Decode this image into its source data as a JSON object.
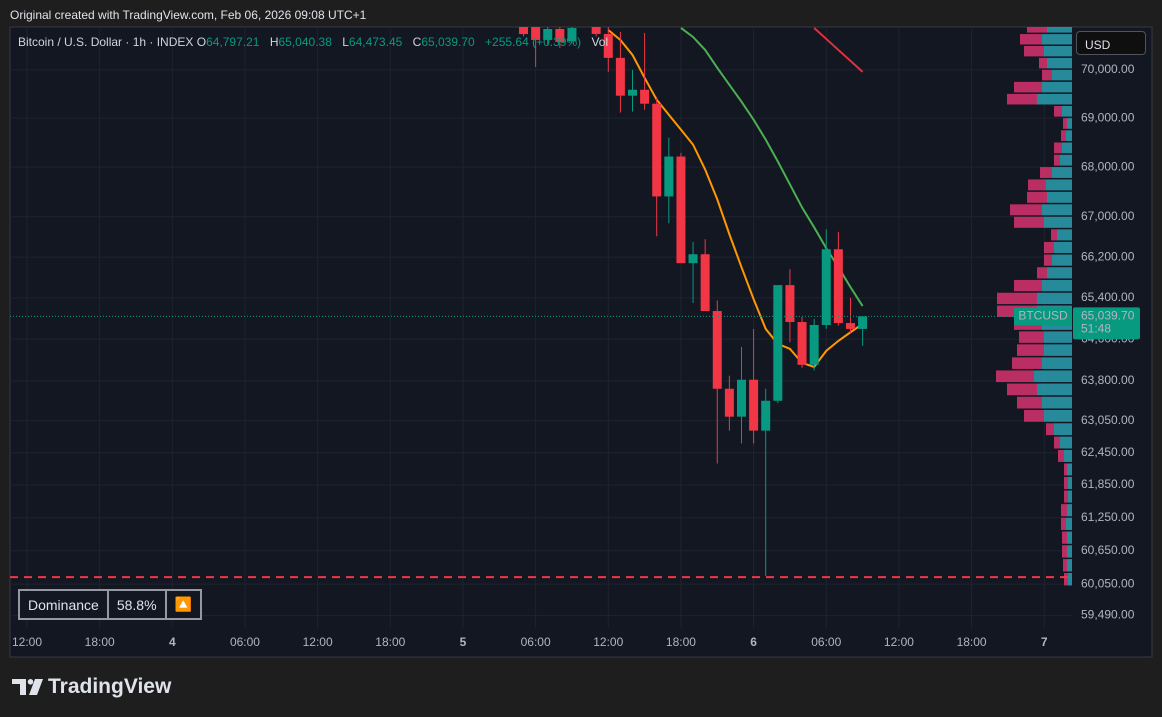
{
  "header": {
    "caption": "Original created with TradingView.com, Feb 06, 2026 09:08 UTC+1"
  },
  "chart_data": {
    "type": "candlestick",
    "legend": {
      "symbol": "Bitcoin / U.S. Dollar · 1h · INDEX",
      "fields": [
        {
          "key": "O",
          "value": "64,797.21"
        },
        {
          "key": "H",
          "value": "65,040.38"
        },
        {
          "key": "L",
          "value": "64,473.45"
        },
        {
          "key": "C",
          "value": "65,039.70"
        }
      ],
      "change": "+255.64 (+0.39%)",
      "vol": "Vol"
    },
    "currency": "USD",
    "categories": [
      "12:00",
      null,
      null,
      null,
      null,
      null,
      "18:00",
      null,
      null,
      null,
      null,
      null,
      "4",
      null,
      null,
      null,
      null,
      null,
      "06:00",
      null,
      null,
      null,
      null,
      null,
      "12:00",
      null,
      null,
      null,
      null,
      null,
      "18:00",
      null,
      null,
      null,
      null,
      null,
      "5",
      null,
      null,
      null,
      null,
      null,
      "06:00",
      null,
      null,
      null,
      null,
      null,
      "12:00",
      null,
      null,
      null,
      null,
      null,
      "18:00",
      null,
      null,
      null,
      null,
      null,
      "6",
      null,
      null,
      null,
      null,
      null,
      "06:00",
      null,
      null,
      null,
      null,
      null,
      "12:00",
      null,
      null,
      null,
      null,
      null,
      "18:00",
      null,
      null,
      null,
      null,
      null,
      "7",
      null,
      null
    ],
    "open": [
      null,
      null,
      null,
      null,
      null,
      null,
      null,
      null,
      null,
      null,
      null,
      null,
      null,
      null,
      null,
      null,
      null,
      null,
      null,
      null,
      null,
      null,
      null,
      null,
      null,
      null,
      null,
      null,
      null,
      null,
      null,
      null,
      null,
      null,
      null,
      null,
      null,
      null,
      null,
      null,
      null,
      70950,
      71000,
      70627,
      70858,
      70600,
      70950,
      71150,
      70753,
      70251,
      69463,
      69586,
      69297,
      67408,
      68214,
      66080,
      66256,
      65144,
      63652,
      63124,
      63823,
      62862,
      63424,
      65649,
      64931,
      64108,
      64873,
      66355,
      64911,
      64797.21,
      null,
      null,
      null,
      null,
      null,
      null,
      null,
      null,
      null,
      null,
      null,
      null,
      null,
      null,
      null,
      null,
      null
    ],
    "high": [
      null,
      null,
      null,
      null,
      null,
      null,
      null,
      null,
      null,
      null,
      null,
      null,
      null,
      null,
      null,
      null,
      null,
      null,
      null,
      null,
      null,
      null,
      null,
      null,
      null,
      null,
      null,
      null,
      null,
      null,
      null,
      null,
      null,
      null,
      null,
      null,
      null,
      null,
      null,
      null,
      null,
      71100,
      71200,
      71100,
      71000,
      71050,
      71300,
      71250,
      70900,
      70796,
      70000,
      70774,
      69440,
      68600,
      68290,
      66500,
      66553,
      65350,
      63900,
      64450,
      64797,
      63652,
      65649,
      65962,
      65030,
      64990,
      66751,
      66700,
      65400,
      65040.38,
      null,
      null,
      null,
      null,
      null,
      null,
      null,
      null,
      null,
      null,
      null,
      null,
      null,
      null,
      null,
      null,
      null
    ],
    "low": [
      null,
      null,
      null,
      null,
      null,
      null,
      null,
      null,
      null,
      null,
      null,
      null,
      null,
      null,
      null,
      null,
      null,
      null,
      null,
      null,
      null,
      null,
      null,
      null,
      null,
      null,
      null,
      null,
      null,
      null,
      null,
      null,
      null,
      null,
      null,
      null,
      null,
      null,
      null,
      null,
      null,
      70700,
      70062,
      70522,
      70460,
      70550,
      70920,
      70700,
      69958,
      69114,
      69134,
      69174,
      66612,
      66870,
      66080,
      65300,
      65144,
      62249,
      62862,
      62621,
      62621,
      60195,
      63380,
      64540,
      64050,
      64000,
      64800,
      64860,
      64700,
      64473.45,
      null,
      null,
      null,
      null,
      null,
      null,
      null,
      null,
      null,
      null,
      null,
      null,
      null,
      null,
      null,
      null,
      null
    ],
    "close": [
      null,
      null,
      null,
      null,
      null,
      null,
      null,
      null,
      null,
      null,
      null,
      null,
      null,
      null,
      null,
      null,
      null,
      null,
      null,
      null,
      null,
      null,
      null,
      null,
      null,
      null,
      null,
      null,
      null,
      null,
      null,
      null,
      null,
      null,
      null,
      null,
      null,
      null,
      null,
      null,
      null,
      70750,
      70627,
      70858,
      70586,
      70880,
      71150,
      70753,
      70251,
      69463,
      69586,
      69297,
      67408,
      68214,
      66080,
      66256,
      65144,
      63652,
      63124,
      63823,
      62862,
      63424,
      65649,
      64931,
      64108,
      64873,
      66355,
      64911,
      64797.21,
      65039.7,
      null,
      null,
      null,
      null,
      null,
      null,
      null,
      null,
      null,
      null,
      null,
      null,
      null,
      null,
      null,
      null,
      null
    ],
    "colors": {
      "up": "#089981",
      "down": "#f23645"
    },
    "series": [
      {
        "color": "#ff9800",
        "values": [
          null,
          null,
          null,
          null,
          null,
          null,
          null,
          null,
          null,
          null,
          null,
          null,
          null,
          null,
          null,
          null,
          null,
          null,
          null,
          null,
          null,
          null,
          null,
          null,
          null,
          null,
          null,
          null,
          null,
          null,
          null,
          null,
          null,
          null,
          null,
          null,
          null,
          null,
          null,
          null,
          null,
          null,
          null,
          null,
          null,
          null,
          null,
          null,
          70837,
          70626,
          70312,
          69834,
          69379,
          69070,
          68763,
          68457,
          67951,
          67349,
          66652,
          66001,
          65376,
          64797,
          64508,
          64413,
          64145,
          64068,
          64375,
          64566,
          64733,
          64893,
          null,
          null,
          null,
          null,
          null,
          null,
          null,
          null,
          null,
          null,
          null,
          null,
          null,
          null,
          null,
          null,
          null
        ]
      },
      {
        "color": "#4caf50",
        "values": [
          null,
          null,
          null,
          null,
          null,
          null,
          null,
          null,
          null,
          null,
          null,
          null,
          null,
          null,
          null,
          null,
          null,
          null,
          null,
          null,
          null,
          null,
          null,
          null,
          null,
          null,
          null,
          null,
          null,
          null,
          null,
          null,
          null,
          null,
          null,
          null,
          null,
          null,
          null,
          null,
          null,
          null,
          null,
          null,
          null,
          null,
          null,
          null,
          null,
          null,
          null,
          null,
          null,
          null,
          70879,
          70690,
          70417,
          70042,
          69689,
          69338,
          68968,
          68559,
          68113,
          67649,
          67187,
          66790,
          66375,
          66001,
          65610,
          65240,
          null,
          null,
          null,
          null,
          null,
          null,
          null,
          null,
          null,
          null,
          null,
          null,
          null,
          null,
          null,
          null,
          null
        ]
      },
      {
        "color": "#e0313c",
        "values": [
          null,
          null,
          null,
          null,
          null,
          null,
          null,
          null,
          null,
          null,
          null,
          null,
          null,
          null,
          null,
          null,
          null,
          null,
          null,
          null,
          null,
          null,
          null,
          null,
          null,
          null,
          null,
          null,
          null,
          null,
          null,
          null,
          null,
          null,
          null,
          null,
          null,
          null,
          null,
          null,
          null,
          null,
          null,
          null,
          null,
          null,
          null,
          null,
          null,
          null,
          null,
          null,
          null,
          null,
          null,
          null,
          null,
          null,
          null,
          null,
          null,
          null,
          null,
          null,
          null,
          70879,
          70648,
          70417,
          70187,
          69958,
          null,
          null,
          null,
          null,
          null,
          null,
          null,
          null,
          null,
          null,
          null,
          null,
          null,
          null,
          null,
          null,
          null
        ]
      }
    ],
    "ylim": [
      59270,
      70900
    ],
    "log_scale": true,
    "grid": true,
    "yticks": [
      {
        "value": 70000,
        "label": "70,000.00"
      },
      {
        "value": 69000,
        "label": "69,000.00"
      },
      {
        "value": 68000,
        "label": "68,000.00"
      },
      {
        "value": 67000,
        "label": "67,000.00"
      },
      {
        "value": 66200,
        "label": "66,200.00"
      },
      {
        "value": 65400,
        "label": "65,400.00"
      },
      {
        "value": 64600,
        "label": "64,600.00"
      },
      {
        "value": 63800,
        "label": "63,800.00"
      },
      {
        "value": 63050,
        "label": "63,050.00"
      },
      {
        "value": 62450,
        "label": "62,450.00"
      },
      {
        "value": 61850,
        "label": "61,850.00"
      },
      {
        "value": 61250,
        "label": "61,250.00"
      },
      {
        "value": 60650,
        "label": "60,650.00"
      },
      {
        "value": 60050,
        "label": "60,050.00"
      },
      {
        "value": 59490,
        "label": "59,490.00"
      }
    ],
    "last_price": {
      "symbol": "BTCUSD",
      "price": "65,039.70",
      "countdown": "51:48"
    },
    "alert_line": {
      "value": 60176,
      "color": "#f23645"
    },
    "volume_profile": {
      "up_color": "#2a9fb0",
      "down_color": "#d8336e",
      "prices": [
        60000,
        60250,
        60500,
        60750,
        61000,
        61250,
        61500,
        61750,
        62000,
        62250,
        62500,
        62750,
        63000,
        63250,
        63500,
        63750,
        64000,
        64250,
        64500,
        64750,
        65000,
        65250,
        65500,
        65750,
        66000,
        66250,
        66500,
        66750,
        67000,
        67250,
        67500,
        67750,
        68000,
        68250,
        68500,
        68750,
        69000,
        69250,
        69500,
        69750,
        70000,
        70250,
        70500,
        70750
      ],
      "up": [
        4,
        5,
        5,
        5,
        6,
        5,
        4,
        4,
        5,
        8,
        12,
        18,
        28,
        30,
        35,
        38,
        30,
        28,
        28,
        30,
        35,
        35,
        30,
        25,
        20,
        18,
        15,
        28,
        30,
        25,
        26,
        20,
        12,
        10,
        6,
        5,
        10,
        35,
        30,
        20,
        25,
        28,
        30,
        25
      ],
      "down": [
        4,
        4,
        5,
        5,
        5,
        6,
        4,
        4,
        3,
        6,
        6,
        8,
        20,
        25,
        30,
        38,
        30,
        27,
        25,
        28,
        40,
        40,
        28,
        10,
        8,
        10,
        6,
        30,
        32,
        20,
        18,
        12,
        6,
        8,
        5,
        4,
        8,
        30,
        28,
        10,
        8,
        20,
        22,
        20
      ]
    }
  },
  "dominance": {
    "label": "Dominance",
    "value": "58.8%",
    "icon": "🔼"
  },
  "footer": {
    "brand": "TradingView"
  }
}
